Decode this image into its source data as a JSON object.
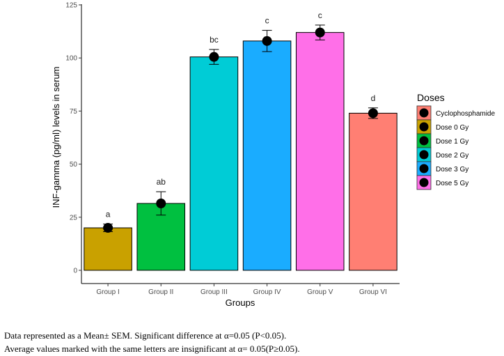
{
  "chart_data": {
    "type": "bar",
    "xlabel": "Groups",
    "ylabel": "INF-gamma (pg/ml) levels in serum",
    "ylim": [
      0,
      125
    ],
    "yticks": [
      0,
      25,
      50,
      75,
      100,
      125
    ],
    "categories": [
      "Group I",
      "Group II",
      "Group III",
      "Group IV",
      "Group V",
      "Group VI"
    ],
    "values": [
      20,
      31.5,
      100.5,
      108,
      112,
      74
    ],
    "sem": [
      1.8,
      5.5,
      3.5,
      5,
      3.5,
      2.5
    ],
    "letters": [
      "a",
      "ab",
      "bc",
      "c",
      "c",
      "d"
    ],
    "bar_colors": [
      "#C9A100",
      "#00C040",
      "#00CCD6",
      "#1AACFF",
      "#FF6FE8",
      "#FF7F73"
    ],
    "legend": {
      "title": "Doses",
      "items": [
        {
          "label": "Cyclophosphamide",
          "color": "#FF7F73"
        },
        {
          "label": "Dose 0 Gy",
          "color": "#C9A100"
        },
        {
          "label": "Dose 1 Gy",
          "color": "#00C040"
        },
        {
          "label": "Dose 2 Gy",
          "color": "#00CCD6"
        },
        {
          "label": "Dose 3 Gy",
          "color": "#1AACFF"
        },
        {
          "label": "Dose 5 Gy",
          "color": "#FF6FE8"
        }
      ]
    },
    "grid": false
  },
  "notes": {
    "line1": "Data represented as a Mean± SEM. Significant difference at α=0.05 (P<0.05).",
    "line2": "Average values marked with the same letters are insignificant at α= 0.05(P≥0.05)."
  }
}
